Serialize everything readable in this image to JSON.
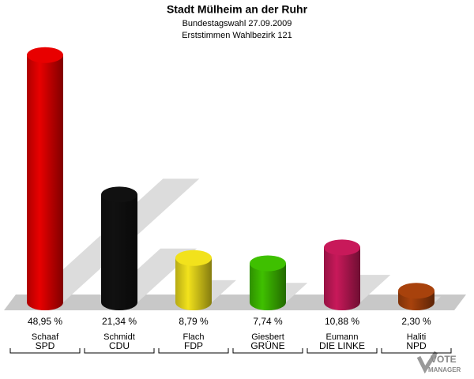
{
  "chart_data": {
    "type": "bar3d",
    "title": "Stadt Mülheim an der Ruhr",
    "subtitle": [
      "Bundestagswahl 27.09.2009",
      "Erststimmen Wahlbezirk 121"
    ],
    "candidates": [
      "Schaaf",
      "Schmidt",
      "Flach",
      "Giesbert",
      "Eumann",
      "Haliti"
    ],
    "categories": [
      "SPD",
      "CDU",
      "FDP",
      "GRÜNE",
      "DIE LINKE",
      "NPD"
    ],
    "values": [
      48.95,
      21.34,
      8.79,
      7.74,
      10.88,
      2.3
    ],
    "value_labels": [
      "48,95 %",
      "21,34 %",
      "8,79 %",
      "7,74 %",
      "10,88 %",
      "2,30 %"
    ],
    "colors": [
      "#e80000",
      "#111111",
      "#f2e21c",
      "#3fc000",
      "#c8195a",
      "#a8420c"
    ],
    "logo": [
      "VOTE",
      "MANAGER"
    ]
  }
}
